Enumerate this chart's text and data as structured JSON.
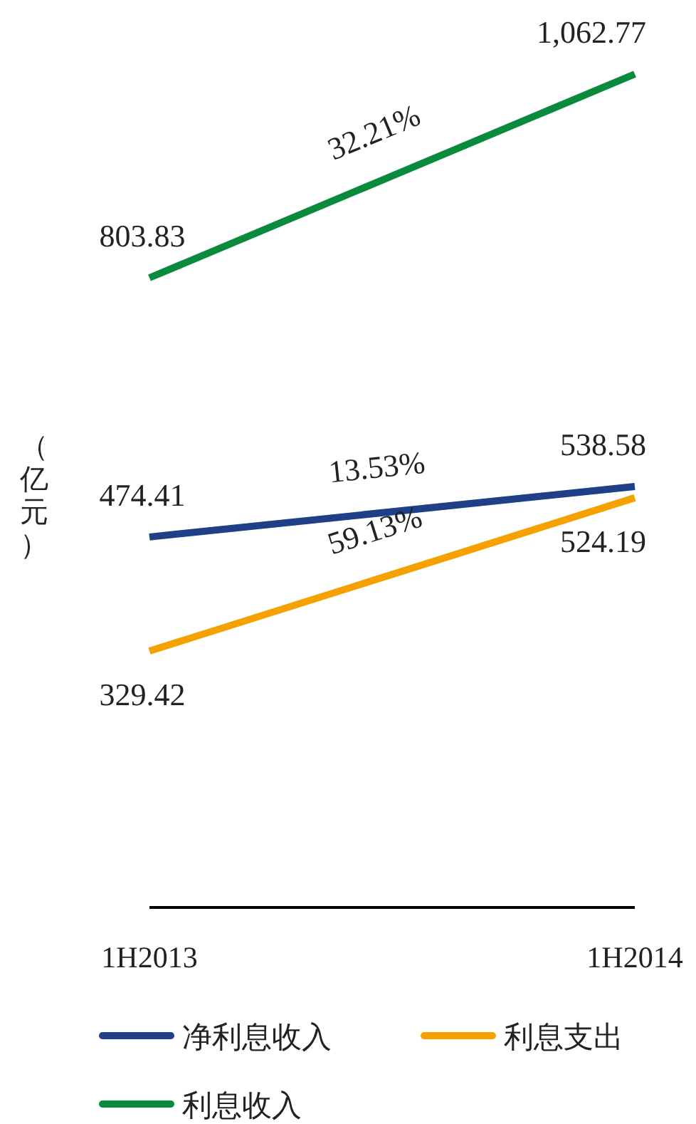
{
  "chart_data": {
    "type": "line",
    "ylabel": "（亿元）",
    "categories": [
      "1H2013",
      "1H2014"
    ],
    "series": [
      {
        "name": "净利息收入",
        "color": "#1f3f87",
        "values": [
          474.41,
          538.58
        ],
        "value_labels": [
          "474.41",
          "538.58"
        ]
      },
      {
        "name": "利息支出",
        "color": "#f5a200",
        "values": [
          329.42,
          524.19
        ],
        "value_labels": [
          "329.42",
          "524.19"
        ]
      },
      {
        "name": "利息收入",
        "color": "#0a8a3c",
        "values": [
          803.83,
          1062.77
        ],
        "value_labels": [
          "803.83",
          "1,062.77"
        ]
      }
    ],
    "legend": "bottom",
    "marker": "none",
    "line_style": "solid",
    "annotations": [
      "13.53%",
      "59.13%",
      "32.21%"
    ]
  }
}
